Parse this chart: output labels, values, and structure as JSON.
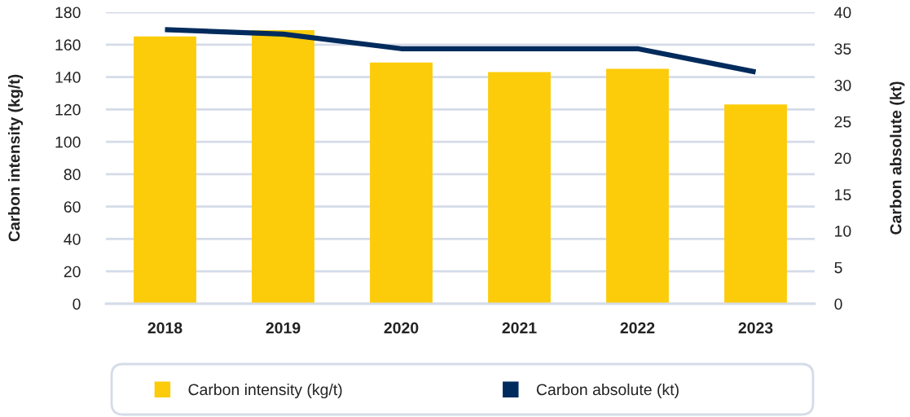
{
  "chart_data": {
    "type": "bar",
    "categories": [
      "2018",
      "2019",
      "2020",
      "2021",
      "2022",
      "2023"
    ],
    "series": [
      {
        "name": "Carbon intensity (kg/t)",
        "color": "#fccc0a",
        "values": [
          165,
          169,
          149,
          143,
          145,
          123
        ]
      },
      {
        "name": "Carbon absolute (kt)",
        "type": "line",
        "axis": "y2",
        "color": "#002b5c",
        "values": [
          37.6,
          37.0,
          35.0,
          35.0,
          35.0,
          31.8
        ]
      }
    ],
    "ylabel": "Carbon intensity (kg/t)",
    "y2label": "Carbon absolute (kt)",
    "ylim": [
      0,
      180
    ],
    "yticks": [
      0,
      20,
      40,
      60,
      80,
      100,
      120,
      140,
      160,
      180
    ],
    "y2lim": [
      0,
      40
    ],
    "y2ticks": [
      0,
      5,
      10,
      15,
      20,
      25,
      30,
      35,
      40
    ],
    "grid": "y",
    "legend": "bottom"
  }
}
